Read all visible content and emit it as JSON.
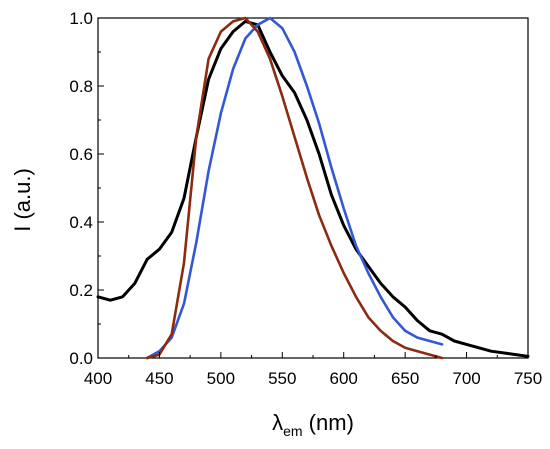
{
  "chart_data": {
    "type": "line",
    "title": "",
    "xlabel": "λ",
    "xlabel_sub": "em",
    "xlabel_unit": " (nm)",
    "ylabel": "I (a.u.)",
    "xlim": [
      400,
      750
    ],
    "ylim": [
      0,
      1.0
    ],
    "xticks": [
      400,
      450,
      500,
      550,
      600,
      650,
      700,
      750
    ],
    "yticks": [
      0.0,
      0.2,
      0.4,
      0.6,
      0.8,
      1.0
    ],
    "ytick_labels": [
      "0.0",
      "0.2",
      "0.4",
      "0.6",
      "0.8",
      "1.0"
    ],
    "grid": false,
    "legend": "none",
    "series": [
      {
        "color": "#000000",
        "x": [
          400,
          410,
          420,
          430,
          440,
          450,
          460,
          470,
          480,
          490,
          500,
          510,
          520,
          530,
          540,
          550,
          560,
          570,
          580,
          590,
          600,
          610,
          620,
          630,
          640,
          650,
          660,
          670,
          680,
          690,
          700,
          710,
          720,
          730,
          740,
          750
        ],
        "y": [
          0.18,
          0.17,
          0.18,
          0.22,
          0.29,
          0.32,
          0.37,
          0.47,
          0.65,
          0.82,
          0.91,
          0.96,
          0.99,
          0.98,
          0.9,
          0.83,
          0.78,
          0.7,
          0.6,
          0.48,
          0.39,
          0.32,
          0.27,
          0.22,
          0.18,
          0.15,
          0.11,
          0.08,
          0.07,
          0.05,
          0.04,
          0.03,
          0.02,
          0.015,
          0.01,
          0.005
        ]
      },
      {
        "color": "#3358d6",
        "x": [
          440,
          450,
          460,
          470,
          480,
          490,
          500,
          510,
          520,
          530,
          540,
          550,
          560,
          570,
          580,
          590,
          600,
          610,
          620,
          630,
          640,
          650,
          660,
          670,
          680
        ],
        "y": [
          0.0,
          0.02,
          0.06,
          0.16,
          0.34,
          0.55,
          0.72,
          0.85,
          0.94,
          0.98,
          1.0,
          0.97,
          0.9,
          0.8,
          0.69,
          0.56,
          0.44,
          0.33,
          0.25,
          0.18,
          0.12,
          0.08,
          0.06,
          0.05,
          0.04
        ]
      },
      {
        "color": "#8b2b10",
        "x": [
          440,
          450,
          460,
          470,
          480,
          490,
          500,
          510,
          520,
          530,
          540,
          550,
          560,
          570,
          580,
          590,
          600,
          610,
          620,
          630,
          640,
          650,
          660,
          670,
          680
        ],
        "y": [
          0.0,
          0.01,
          0.07,
          0.28,
          0.65,
          0.88,
          0.96,
          0.99,
          1.0,
          0.96,
          0.88,
          0.77,
          0.65,
          0.53,
          0.42,
          0.33,
          0.25,
          0.18,
          0.12,
          0.08,
          0.05,
          0.03,
          0.02,
          0.01,
          0.0
        ]
      }
    ]
  }
}
